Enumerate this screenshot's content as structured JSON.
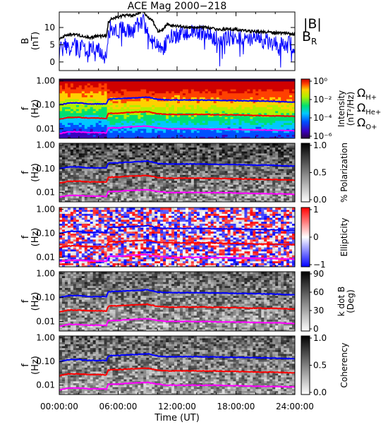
{
  "title": "ACE Mag 2000−218",
  "x_axis": {
    "label": "Time (UT)",
    "ticks": [
      "00:00:00",
      "06:00:00",
      "12:00:00",
      "18:00:00",
      "24:00:00"
    ],
    "tick_hours": [
      0,
      6,
      12,
      18,
      24
    ],
    "range_hours": [
      0,
      24
    ]
  },
  "panel_b": {
    "ylabel_top": "B",
    "ylabel_bottom": "(nT)",
    "ticks": [
      "10",
      "5",
      "0"
    ],
    "tick_values": [
      10,
      5,
      0
    ],
    "ylim": [
      -2.5,
      14.5
    ],
    "legend_total": "|B|",
    "legend_radial_main": "B",
    "legend_radial_sub": "R"
  },
  "spectro": {
    "ylabel_top": "f",
    "ylabel_bottom": "(Hz)",
    "ticks": [
      "1.00",
      "0.10",
      "0.01"
    ],
    "tick_values": [
      1.0,
      0.1,
      0.01
    ],
    "ylim_hz": [
      0.004,
      1.2
    ],
    "log_scale": true
  },
  "gyro_legend": {
    "symbol": "Ω",
    "h": "H+",
    "he": "He+",
    "o": "O+"
  },
  "colorbars": [
    {
      "title": "Intensity",
      "subtitle": "(nT²/Hz)",
      "ticks": [
        "10⁰",
        "10⁻²",
        "10⁻⁴",
        "10⁻⁶"
      ],
      "scale": "rainbow",
      "log_scale": true,
      "range": [
        1e-07,
        3
      ]
    },
    {
      "title": "% Polarization",
      "subtitle": "",
      "ticks": [
        "1.0",
        "0.5",
        "0.0"
      ],
      "scale": "gray",
      "range": [
        0,
        1
      ]
    },
    {
      "title": "Ellipticity",
      "subtitle": "",
      "ticks": [
        "1",
        "0",
        "−1"
      ],
      "scale": "bwr",
      "range": [
        -1,
        1
      ]
    },
    {
      "title": "k dot B",
      "subtitle": "(Deg)",
      "ticks": [
        "90",
        "60",
        "30",
        "0"
      ],
      "scale": "gray",
      "range": [
        0,
        90
      ]
    },
    {
      "title": "Coherency",
      "subtitle": "",
      "ticks": [
        "1.0",
        "0.5",
        "0.0"
      ],
      "scale": "gray",
      "range": [
        0,
        1
      ]
    }
  ],
  "colors": {
    "b_total": "#000000",
    "b_radial": "#0000ff",
    "gyro_h": "#0000ff",
    "gyro_he": "#ff0000",
    "gyro_o": "#ff00ff"
  },
  "chart_data": {
    "type": "line",
    "title": "ACE Mag 2000−218",
    "xlabel": "Time (UT)",
    "x_range_hours": [
      0,
      24
    ],
    "b_total": {
      "name": "|B|",
      "t_hours": [
        0,
        0.5,
        1,
        2,
        3,
        4,
        4.8,
        5.0,
        5.3,
        6,
        6.5,
        7,
        7.5,
        8,
        8.5,
        9,
        9.5,
        10,
        10.5,
        11,
        11.5,
        12,
        13,
        14,
        15,
        16,
        17,
        18,
        19,
        20,
        21,
        22,
        23,
        24
      ],
      "values": [
        6.5,
        7.5,
        8,
        7.8,
        7,
        7.5,
        7.5,
        11.5,
        12.5,
        13,
        13.5,
        13.5,
        13.5,
        14,
        15,
        13,
        12,
        9,
        9,
        11,
        10.5,
        10.5,
        10,
        10,
        10,
        9.5,
        9.5,
        9.5,
        9,
        8.8,
        8.7,
        8.5,
        8.3,
        8
      ]
    },
    "b_radial": {
      "name": "B",
      "t_hours": [
        0,
        0.5,
        1,
        1.5,
        2,
        2.5,
        3,
        3.5,
        4,
        4.5,
        4.8,
        5.0,
        5.3,
        6,
        6.5,
        7,
        7.5,
        8,
        8.5,
        9,
        9.5,
        10,
        10.5,
        11,
        12,
        13,
        14,
        15,
        16,
        17,
        18,
        19,
        20,
        21,
        22,
        23,
        24
      ],
      "values": [
        3,
        5,
        4,
        6,
        3,
        5,
        4,
        4,
        3,
        2,
        1,
        9,
        10,
        9,
        10,
        9,
        8,
        11,
        12,
        8,
        6,
        4,
        3,
        7,
        8,
        8,
        9,
        8,
        7,
        7,
        7,
        6,
        7,
        6,
        5,
        5,
        5
      ]
    },
    "gyrofrequencies_hz": {
      "t_hours": [
        0,
        1,
        2,
        3,
        4,
        4.8,
        5.0,
        5.3,
        6,
        7,
        8,
        9,
        10,
        11,
        12,
        14,
        16,
        18,
        20,
        22,
        24
      ],
      "h_plus": [
        0.1,
        0.12,
        0.12,
        0.11,
        0.11,
        0.11,
        0.17,
        0.18,
        0.18,
        0.19,
        0.2,
        0.21,
        0.17,
        0.16,
        0.16,
        0.16,
        0.155,
        0.15,
        0.145,
        0.14,
        0.13
      ],
      "he_plus": [
        0.025,
        0.03,
        0.03,
        0.028,
        0.028,
        0.027,
        0.043,
        0.045,
        0.045,
        0.048,
        0.05,
        0.052,
        0.043,
        0.04,
        0.04,
        0.04,
        0.039,
        0.038,
        0.036,
        0.035,
        0.033
      ],
      "o_plus": [
        0.0063,
        0.0075,
        0.0075,
        0.007,
        0.007,
        0.0068,
        0.011,
        0.011,
        0.011,
        0.012,
        0.0125,
        0.013,
        0.011,
        0.01,
        0.01,
        0.01,
        0.0098,
        0.0095,
        0.009,
        0.0088,
        0.0083
      ]
    }
  }
}
